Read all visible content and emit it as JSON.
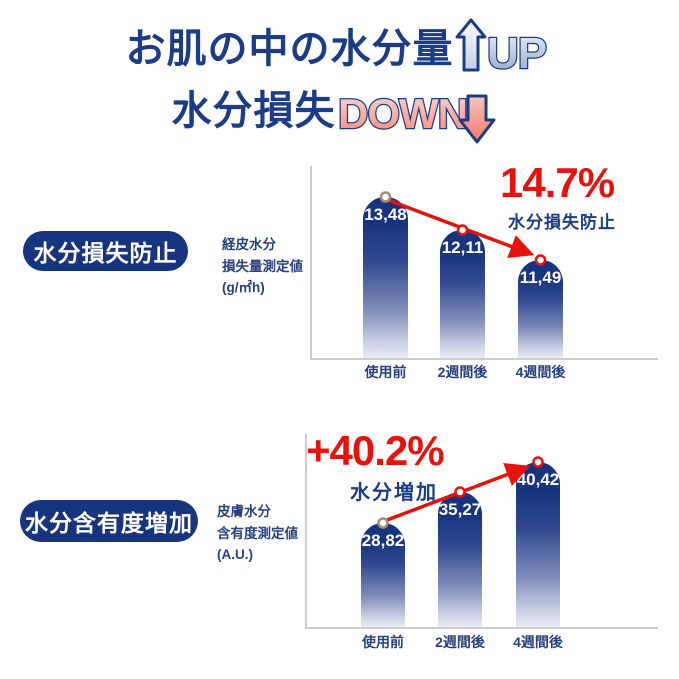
{
  "title": {
    "line1": "お肌の中の水分量",
    "up_label": "UP",
    "line2": "水分損失",
    "down_label": "DOWN"
  },
  "colors": {
    "navy": "#1b3c87",
    "pill_navy": "#17357e",
    "accent_red": "#e8120c",
    "bar_gradient_top": "#17357e",
    "bar_gradient_bottom": "#e9ecf4",
    "axis_gray": "#cccccc",
    "up_badge_light": "#edf1f8",
    "up_badge_dark": "#8fa2ca",
    "down_badge_light": "#fbd9d3",
    "down_badge_dark": "#f5897c",
    "first_dot_brown": "#a18a76"
  },
  "sections": [
    {
      "pill_label": "水分損失防止",
      "measure_label_lines": [
        "経皮水分",
        "損失量測定値",
        "(g/㎡h)"
      ],
      "stat_value": "14.7%",
      "stat_caption": "水分損失防止",
      "categories": [
        "使用前",
        "2週間後",
        "4週間後"
      ],
      "bar_value_labels": [
        "13,48",
        "12,11",
        "11,49"
      ]
    },
    {
      "pill_label": "水分含有度増加",
      "measure_label_lines": [
        "皮膚水分",
        "含有度測定値",
        "(A.U.)"
      ],
      "stat_value": "+40.2%",
      "stat_caption": "水分増加",
      "categories": [
        "使用前",
        "2週間後",
        "4週間後"
      ],
      "bar_value_labels": [
        "28,82",
        "35,27",
        "40,42"
      ]
    }
  ],
  "chart_data": [
    {
      "type": "bar",
      "title": "水分損失防止",
      "ylabel": "経皮水分損失量測定値 (g/㎡h)",
      "xlabel": "",
      "categories": [
        "使用前",
        "2週間後",
        "4週間後"
      ],
      "values": [
        13.48,
        12.11,
        11.49
      ],
      "annotation": "14.7% 水分損失防止",
      "trend": "down",
      "legend": "none",
      "grid": false
    },
    {
      "type": "bar",
      "title": "水分含有度増加",
      "ylabel": "皮膚水分含有度測定値 (A.U.)",
      "xlabel": "",
      "categories": [
        "使用前",
        "2週間後",
        "4週間後"
      ],
      "values": [
        28.82,
        35.27,
        40.42
      ],
      "annotation": "+40.2% 水分増加",
      "trend": "up",
      "legend": "none",
      "grid": false
    }
  ]
}
